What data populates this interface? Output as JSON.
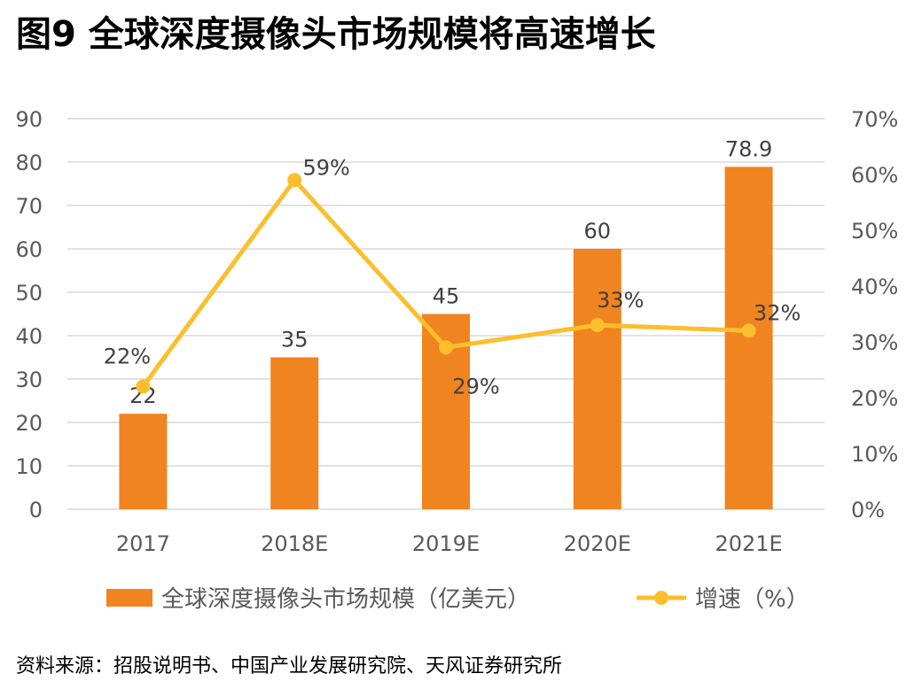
{
  "title": "图9  全球深度摄像头市场规模将高速增长",
  "source": "资料来源：招股说明书、中国产业发展研究院、天风证券研究所",
  "colors": {
    "bar": "#f08420",
    "line": "#fbbf2d",
    "grid": "#d9d9d9",
    "tick": "#595959"
  },
  "chart_data": {
    "type": "bar",
    "categories": [
      "2017",
      "2018E",
      "2019E",
      "2020E",
      "2021E"
    ],
    "series": [
      {
        "name": "全球深度摄像头市场规模（亿美元）",
        "type": "bar",
        "axis": "left",
        "values": [
          22,
          35,
          45,
          60,
          78.9
        ],
        "labels": [
          "22",
          "35",
          "45",
          "60",
          "78.9"
        ]
      },
      {
        "name": "增速（%）",
        "type": "line",
        "axis": "right",
        "values": [
          22,
          59,
          29,
          33,
          32
        ],
        "labels": [
          "22%",
          "59%",
          "29%",
          "33%",
          "32%"
        ]
      }
    ],
    "y_left": {
      "min": 0,
      "max": 90,
      "step": 10,
      "tick_labels": [
        "0",
        "10",
        "20",
        "30",
        "40",
        "50",
        "60",
        "70",
        "80",
        "90"
      ]
    },
    "y_right": {
      "min": 0,
      "max": 70,
      "step": 10,
      "unit": "%",
      "tick_labels": [
        "0%",
        "10%",
        "20%",
        "30%",
        "40%",
        "50%",
        "60%",
        "70%"
      ]
    },
    "grid": true,
    "legend_position": "bottom"
  }
}
